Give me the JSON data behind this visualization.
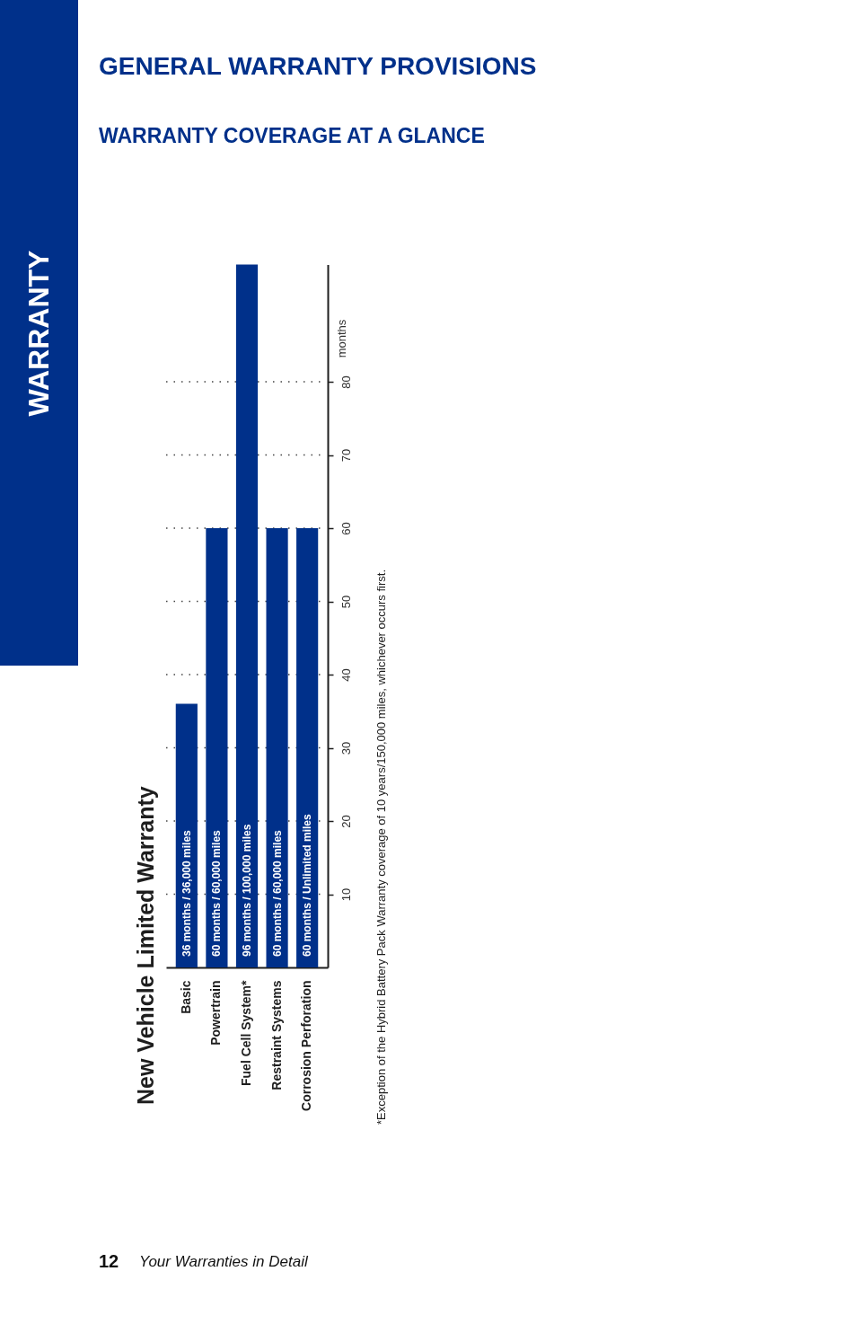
{
  "chart_data": {
    "type": "bar",
    "title": "New Vehicle Limited Warranty",
    "ylabel": "months",
    "categories": [
      "Basic",
      "Powertrain",
      "Fuel Cell System*",
      "Restraint Systems",
      "Corrosion Perforation"
    ],
    "values": [
      36,
      60,
      96,
      60,
      60
    ],
    "color": "#00308a",
    "value_labels": [
      "36 months / 36,000 miles",
      "60 months / 60,000 miles",
      "96 months / 100,000 miles",
      "60 months / 60,000 miles",
      "60 months / Unlimited miles"
    ],
    "ylim": [
      0,
      96
    ],
    "yticks": [
      10,
      20,
      30,
      40,
      50,
      60,
      70,
      80
    ],
    "grid": "y",
    "annotations": [
      "GENERAL WARRANTY PROVISIONS",
      "WARRANTY COVERAGE AT A GLANCE",
      "WARRANTY",
      "*Exception of the Hybrid Battery Pack Warranty coverage of 10 years/150,000 miles, whichever occurs first.",
      "12",
      "Your Warranties in Detail"
    ]
  }
}
